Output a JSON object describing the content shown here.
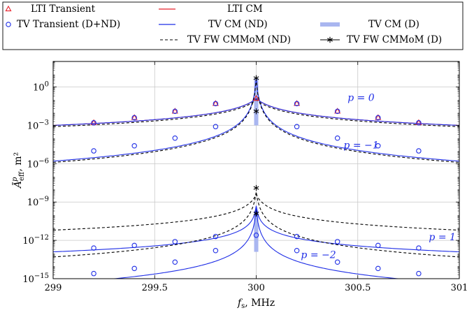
{
  "chart_data": {
    "type": "line",
    "xlabel": "f_s, MHz",
    "ylabel": "Ā^p_eff, m²",
    "xlim": [
      299,
      301
    ],
    "ylim_log10": [
      -15,
      2
    ],
    "y_scale": "log",
    "grid": true,
    "legend_placement": "top",
    "x_ticks": [
      {
        "value": 299,
        "label": "299"
      },
      {
        "value": 299.5,
        "label": "299.5"
      },
      {
        "value": 300,
        "label": "300"
      },
      {
        "value": 300.5,
        "label": "300.5"
      },
      {
        "value": 301,
        "label": "301"
      }
    ],
    "y_ticks": [
      {
        "value": 0,
        "base": "10",
        "exp": "0"
      },
      {
        "value": -3,
        "base": "10",
        "exp": "−3"
      },
      {
        "value": -6,
        "base": "10",
        "exp": "−6"
      },
      {
        "value": -9,
        "base": "10",
        "exp": "−9"
      },
      {
        "value": -12,
        "base": "10",
        "exp": "−12"
      },
      {
        "value": -15,
        "base": "10",
        "exp": "−15"
      }
    ],
    "legend": [
      {
        "label": "LTI Transient",
        "style": "red-triangle"
      },
      {
        "label": "LTI CM",
        "style": "red-line"
      },
      {
        "label": "TV Transient (D+ND)",
        "style": "blue-circle"
      },
      {
        "label": "TV CM (ND)",
        "style": "blue-line"
      },
      {
        "label": "TV CM (D)",
        "style": "light-blue-bar"
      },
      {
        "label": "TV FW CMMoM (ND)",
        "style": "black-dashed"
      },
      {
        "label": "TV FW CMMoM (D)",
        "style": "black-star-line"
      }
    ],
    "curve_labels": [
      {
        "text": "p = 0",
        "x": 300.45,
        "y_log10": -1.1
      },
      {
        "text": "p = −1",
        "x": 300.43,
        "y_log10": -4.8
      },
      {
        "text": "p = 1",
        "x": 300.85,
        "y_log10": -12.0
      },
      {
        "text": "p = −2",
        "x": 300.22,
        "y_log10": -13.4
      }
    ],
    "series": [
      {
        "name": "LTI CM",
        "kind": "log-peak",
        "color": "#e8202a",
        "base_log10": -3.0,
        "peak_log10": -0.9,
        "core_width": 0.05
      },
      {
        "name": "LTI Transient",
        "kind": "markers",
        "marker": "triangle",
        "color": "#e8202a",
        "x": [
          299.2,
          299.4,
          299.6,
          299.8,
          300.0,
          300.2,
          300.4,
          300.6,
          300.8
        ],
        "y_log10": [
          -2.8,
          -2.4,
          -1.9,
          -1.3,
          -0.9,
          -1.3,
          -1.9,
          -2.4,
          -2.8
        ]
      },
      {
        "name": "TV CM (ND) p=0",
        "kind": "log-peak",
        "color": "#1f2ee6",
        "base_log10": -3.0,
        "peak_log10": -0.9,
        "core_width": 0.05
      },
      {
        "name": "TV Transient (D+ND) p=0",
        "kind": "markers",
        "marker": "circle",
        "color": "#1f2ee6",
        "x": [
          299.2,
          299.4,
          299.6,
          299.8,
          300.2,
          300.4,
          300.6,
          300.8
        ],
        "y_log10": [
          -2.8,
          -2.4,
          -1.9,
          -1.3,
          -1.3,
          -1.9,
          -2.4,
          -2.8
        ]
      },
      {
        "name": "TV CM (ND) p=−1",
        "kind": "log-peak",
        "color": "#1f2ee6",
        "base_log10": -5.8,
        "peak_log10": 0.7,
        "core_width": 0.005
      },
      {
        "name": "TV Transient (D+ND) p=−1",
        "kind": "markers",
        "marker": "circle",
        "color": "#1f2ee6",
        "x": [
          299.2,
          299.4,
          299.6,
          299.8,
          300.2,
          300.4,
          300.6,
          300.8
        ],
        "y_log10": [
          -5.0,
          -4.6,
          -4.0,
          -3.1,
          -3.1,
          -4.0,
          -4.6,
          -5.0
        ]
      },
      {
        "name": "TV FW CMMoM (ND) p=0",
        "kind": "log-peak",
        "color": "#000000",
        "dash": true,
        "base_log10": -3.1,
        "peak_log10": -1.0,
        "core_width": 0.05
      },
      {
        "name": "TV FW CMMoM (ND) p=−1",
        "kind": "log-peak",
        "color": "#000000",
        "dash": true,
        "base_log10": -5.9,
        "peak_log10": 0.6,
        "core_width": 0.005
      },
      {
        "name": "TV CM (ND) p=1",
        "kind": "log-peak",
        "color": "#1f2ee6",
        "base_log10": -12.9,
        "peak_log10": -9.3,
        "core_width": 0.005
      },
      {
        "name": "TV Transient (D+ND) p=1",
        "kind": "markers",
        "marker": "circle",
        "color": "#1f2ee6",
        "x": [
          299.2,
          299.4,
          299.6,
          299.8,
          300.2,
          300.4,
          300.6,
          300.8
        ],
        "y_log10": [
          -12.6,
          -12.4,
          -12.1,
          -11.7,
          -11.7,
          -12.1,
          -12.4,
          -12.6
        ]
      },
      {
        "name": "TV CM (ND) p=−2",
        "kind": "log-peak",
        "color": "#1f2ee6",
        "base_log10": -15.4,
        "peak_log10": -9.5,
        "core_width": 0.005
      },
      {
        "name": "TV Transient (D+ND) p=−2",
        "kind": "markers",
        "marker": "circle",
        "color": "#1f2ee6",
        "x": [
          299.2,
          299.4,
          299.6,
          299.8,
          300.0,
          300.2,
          300.4,
          300.6,
          300.8
        ],
        "y_log10": [
          -14.6,
          -14.2,
          -13.7,
          -12.8,
          -11.6,
          -12.8,
          -13.7,
          -14.2,
          -14.6
        ]
      },
      {
        "name": "TV FW CMMoM (ND) p=1",
        "kind": "log-peak",
        "color": "#000000",
        "dash": true,
        "base_log10": -11.2,
        "peak_log10": -8.4,
        "core_width": 0.02
      },
      {
        "name": "TV FW CMMoM (ND) p=−2",
        "kind": "log-peak",
        "color": "#000000",
        "dash": true,
        "base_log10": -13.3,
        "peak_log10": -8.2,
        "core_width": 0.008
      },
      {
        "name": "TV CM (D)",
        "kind": "bars",
        "color": "#a9b6f0",
        "x": 300.0,
        "ranges_log10": [
          [
            -3.0,
            0.7
          ],
          [
            -12.9,
            -9.7
          ]
        ]
      },
      {
        "name": "TV FW CMMoM (D)",
        "kind": "markers",
        "marker": "star",
        "color": "#000000",
        "x": [
          300.0,
          300.0,
          300.0,
          300.0
        ],
        "y_log10": [
          0.7,
          -1.9,
          -7.9,
          -9.9
        ]
      }
    ]
  }
}
